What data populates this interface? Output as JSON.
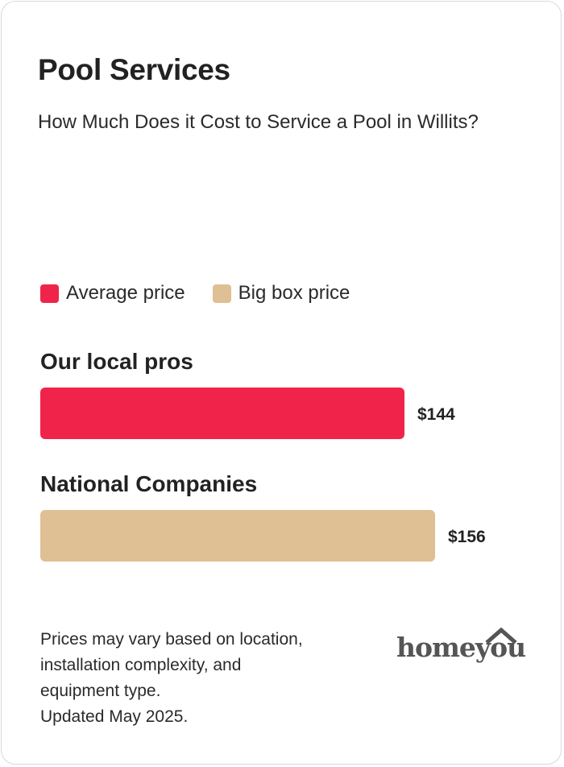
{
  "card": {
    "title": "Pool Services",
    "subtitle": "How Much Does it Cost to Service a Pool in Willits?"
  },
  "colors": {
    "average": "#f0244a",
    "big_box": "#dfbf94"
  },
  "chart_data": {
    "type": "bar",
    "orientation": "horizontal",
    "title": "Pool Services",
    "subtitle": "How Much Does it Cost to Service a Pool in Willits?",
    "legend": [
      "Average price",
      "Big box price"
    ],
    "legend_placement": "top-left",
    "categories": [
      "Our local pros",
      "National Companies"
    ],
    "values": [
      144,
      156
    ],
    "value_labels": [
      "$144",
      "$156"
    ],
    "bar_colors": [
      "#f0244a",
      "#dfbf94"
    ],
    "grid": false
  },
  "footnote": {
    "lines": [
      "Prices may vary based on location,",
      "installation complexity, and",
      "equipment type.",
      "Updated May 2025."
    ]
  },
  "logo": {
    "text": "homeyou",
    "icon": "house-roof-icon"
  }
}
